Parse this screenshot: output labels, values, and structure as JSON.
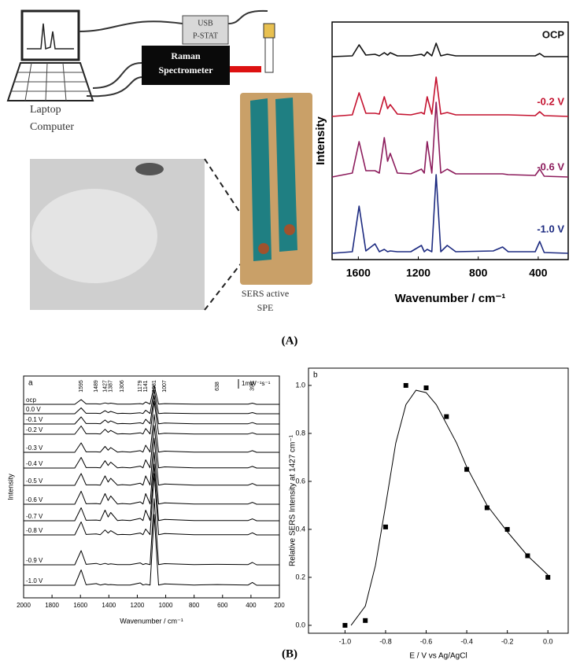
{
  "diagram": {
    "usb": "USB",
    "pstat": "P-STAT",
    "raman": "Raman",
    "spectrometer": "Spectrometer",
    "laptop": "Laptop",
    "computer": "Computer",
    "sers": "SERS active",
    "spe": "SPE"
  },
  "captions": [
    "(A)",
    "(B)"
  ],
  "chart_data": [
    {
      "type": "line",
      "ylabel": "Intensity",
      "xlabel": "Wavenumber / cm⁻¹",
      "x": [
        1775,
        1640,
        1595,
        1550,
        1489,
        1460,
        1427,
        1405,
        1387,
        1340,
        1250,
        1179,
        1160,
        1141,
        1110,
        1081,
        1050,
        1007,
        950,
        700,
        638,
        600,
        420,
        390,
        360,
        200
      ],
      "xlim": [
        1775,
        200
      ],
      "xticks": [
        1600,
        1200,
        800,
        400
      ],
      "series": [
        {
          "name": "OCP",
          "color": "#111111",
          "values": [
            0,
            0.01,
            0.15,
            0.02,
            0.03,
            0.01,
            0.05,
            0.02,
            0.05,
            0.01,
            0.01,
            0.03,
            0.01,
            0.06,
            0.01,
            0.17,
            0.01,
            0.03,
            0.01,
            0.01,
            0.01,
            0.01,
            0.01,
            0.04,
            0,
            0
          ]
        },
        {
          "name": "-0.2 V",
          "color": "#c4122f",
          "values": [
            0,
            0.02,
            0.3,
            0.04,
            0.04,
            0.03,
            0.25,
            0.1,
            0.15,
            0.03,
            0.02,
            0.05,
            0.03,
            0.25,
            0.03,
            0.5,
            0.03,
            0.05,
            0.02,
            0.02,
            0.02,
            0.02,
            0.01,
            0.06,
            0.01,
            0
          ]
        },
        {
          "name": "-0.6 V",
          "color": "#8c1c5c",
          "values": [
            0,
            0.05,
            0.45,
            0.08,
            0.08,
            0.05,
            0.5,
            0.2,
            0.3,
            0.05,
            0.04,
            0.1,
            0.05,
            0.45,
            0.05,
            0.95,
            0.05,
            0.1,
            0.04,
            0.04,
            0.04,
            0.03,
            0.02,
            0.1,
            0.01,
            0
          ]
        },
        {
          "name": "-1.0 V",
          "color": "#1c2a80",
          "values": [
            0,
            0.02,
            0.6,
            0.03,
            0.12,
            0.02,
            0.05,
            0.02,
            0.03,
            0.02,
            0.02,
            0.1,
            0.02,
            0.05,
            0.02,
            1.0,
            0.02,
            0.1,
            0.02,
            0.03,
            0.08,
            0.02,
            0.02,
            0.15,
            0.01,
            0
          ]
        }
      ]
    },
    {
      "type": "line",
      "panel": "a",
      "ylabel": "Intensity",
      "xlabel": "Wavenumber / cm⁻¹",
      "scale_bar": "1mW⁻¹s⁻¹",
      "peaks": [
        1595,
        1489,
        1427,
        1387,
        1306,
        1179,
        1141,
        1081,
        1007,
        638,
        390
      ],
      "x": [
        2000,
        1640,
        1595,
        1560,
        1489,
        1460,
        1427,
        1405,
        1387,
        1340,
        1306,
        1250,
        1179,
        1160,
        1141,
        1110,
        1081,
        1050,
        1007,
        800,
        638,
        420,
        390,
        360,
        200
      ],
      "xlim": [
        2000,
        200
      ],
      "xticks": [
        2000,
        1800,
        1600,
        1400,
        1200,
        1000,
        800,
        600,
        400,
        200
      ],
      "series": [
        {
          "name": "ocp",
          "color": "#000000",
          "values": [
            0,
            0,
            0.2,
            0.02,
            0.02,
            0.01,
            0.06,
            0.03,
            0.05,
            0.01,
            0.01,
            0.01,
            0.03,
            0.01,
            0.1,
            0.01,
            0.8,
            0.01,
            0.03,
            0.01,
            0.01,
            0.01,
            0.05,
            0,
            0
          ]
        },
        {
          "name": "0.0 V",
          "color": "#000000",
          "values": [
            0,
            0,
            0.25,
            0.02,
            0.02,
            0.01,
            0.13,
            0.05,
            0.1,
            0.01,
            0.02,
            0.01,
            0.04,
            0.01,
            0.15,
            0.01,
            1.0,
            0.01,
            0.03,
            0.01,
            0.01,
            0.01,
            0.05,
            0,
            0
          ]
        },
        {
          "name": "-0.1 V",
          "color": "#000000",
          "values": [
            0,
            0,
            0.3,
            0.02,
            0.02,
            0.01,
            0.17,
            0.06,
            0.13,
            0.01,
            0.02,
            0.01,
            0.05,
            0.01,
            0.2,
            0.01,
            1.2,
            0.01,
            0.04,
            0.01,
            0.01,
            0.01,
            0.06,
            0,
            0
          ]
        },
        {
          "name": "-0.2 V",
          "color": "#000000",
          "values": [
            0,
            0,
            0.35,
            0.02,
            0.02,
            0.01,
            0.21,
            0.08,
            0.16,
            0.01,
            0.02,
            0.01,
            0.06,
            0.01,
            0.24,
            0.01,
            1.4,
            0.01,
            0.04,
            0.01,
            0.01,
            0.01,
            0.06,
            0,
            0
          ]
        },
        {
          "name": "-0.3 V",
          "color": "#000000",
          "values": [
            0,
            0,
            0.4,
            0.02,
            0.02,
            0.01,
            0.25,
            0.09,
            0.2,
            0.01,
            0.03,
            0.01,
            0.07,
            0.01,
            0.3,
            0.01,
            1.6,
            0.01,
            0.05,
            0.01,
            0.01,
            0.01,
            0.07,
            0,
            0
          ]
        },
        {
          "name": "-0.4 V",
          "color": "#000000",
          "values": [
            0,
            0,
            0.45,
            0.02,
            0.02,
            0.01,
            0.31,
            0.11,
            0.25,
            0.01,
            0.03,
            0.01,
            0.08,
            0.01,
            0.35,
            0.01,
            1.8,
            0.01,
            0.05,
            0.01,
            0.01,
            0.01,
            0.07,
            0,
            0
          ]
        },
        {
          "name": "-0.5 V",
          "color": "#000000",
          "values": [
            0,
            0,
            0.5,
            0.02,
            0.02,
            0.01,
            0.4,
            0.14,
            0.3,
            0.01,
            0.03,
            0.01,
            0.09,
            0.01,
            0.4,
            0.01,
            2.0,
            0.01,
            0.06,
            0.01,
            0.01,
            0.01,
            0.08,
            0,
            0
          ]
        },
        {
          "name": "-0.6 V",
          "color": "#000000",
          "values": [
            0,
            0,
            0.55,
            0.02,
            0.03,
            0.01,
            0.45,
            0.16,
            0.35,
            0.01,
            0.03,
            0.01,
            0.1,
            0.01,
            0.45,
            0.01,
            2.2,
            0.01,
            0.06,
            0.01,
            0.01,
            0.01,
            0.08,
            0,
            0
          ]
        },
        {
          "name": "-0.7 V",
          "color": "#000000",
          "values": [
            0,
            0,
            0.55,
            0.02,
            0.03,
            0.01,
            0.45,
            0.16,
            0.35,
            0.01,
            0.03,
            0.01,
            0.1,
            0.01,
            0.45,
            0.01,
            2.4,
            0.01,
            0.06,
            0.01,
            0.01,
            0.01,
            0.08,
            0,
            0
          ]
        },
        {
          "name": "-0.8 V",
          "color": "#000000",
          "values": [
            0,
            0,
            0.55,
            0.02,
            0.04,
            0.01,
            0.21,
            0.08,
            0.18,
            0.01,
            0.02,
            0.01,
            0.08,
            0.01,
            0.25,
            0.01,
            2.6,
            0.01,
            0.06,
            0.01,
            0.01,
            0.01,
            0.09,
            0,
            0
          ]
        },
        {
          "name": "-0.9 V",
          "color": "#000000",
          "values": [
            0,
            0,
            0.6,
            0.02,
            0.06,
            0.01,
            0.06,
            0.02,
            0.04,
            0.01,
            0.01,
            0.01,
            0.08,
            0.01,
            0.05,
            0.01,
            2.8,
            0.01,
            0.05,
            0.01,
            0.02,
            0.01,
            0.1,
            0,
            0
          ]
        },
        {
          "name": "-1.0 V",
          "color": "#000000",
          "values": [
            0,
            0,
            0.65,
            0.02,
            0.07,
            0.01,
            0.05,
            0.02,
            0.03,
            0.01,
            0.01,
            0.01,
            0.1,
            0.01,
            0.04,
            0.01,
            3.0,
            0.01,
            0.06,
            0.01,
            0.03,
            0.01,
            0.12,
            0,
            0
          ]
        }
      ]
    },
    {
      "type": "scatter",
      "panel": "b",
      "ylabel": "Relative SERS Intensity at 1427 cm⁻¹",
      "xlabel": "E / V vs Ag/AgCl",
      "x": [
        -1.0,
        -0.9,
        -0.8,
        -0.7,
        -0.6,
        -0.5,
        -0.4,
        -0.3,
        -0.2,
        -0.1,
        0.0
      ],
      "xlim": [
        -1.18,
        0.1
      ],
      "ylim": [
        -0.033,
        1.072
      ],
      "xticks": [
        {
          "value": -1,
          "label": "-1.0"
        },
        -0.8,
        -0.6,
        -0.4,
        -0.2,
        {
          "value": 0,
          "label": "0.0"
        }
      ],
      "yticks": [
        {
          "value": 0,
          "label": "0.0"
        },
        0.2,
        0.4,
        0.6,
        0.8,
        {
          "value": 1,
          "label": "1.0"
        }
      ],
      "series": [
        {
          "color": "#000000",
          "marker": "square",
          "values": [
            0,
            0.02,
            0.41,
            1.0,
            0.99,
            0.87,
            0.65,
            0.49,
            0.4,
            0.29,
            0.2
          ]
        },
        {
          "color": "#000000",
          "x": [
            -0.97,
            -0.9,
            -0.85,
            -0.8,
            -0.75,
            -0.7,
            -0.65,
            -0.6,
            -0.55,
            -0.5,
            -0.45,
            -0.4,
            -0.3,
            -0.2,
            -0.1,
            0.0
          ],
          "values": [
            0,
            0.08,
            0.25,
            0.5,
            0.76,
            0.92,
            0.98,
            0.97,
            0.92,
            0.84,
            0.76,
            0.66,
            0.5,
            0.39,
            0.29,
            0.21
          ]
        }
      ]
    }
  ]
}
